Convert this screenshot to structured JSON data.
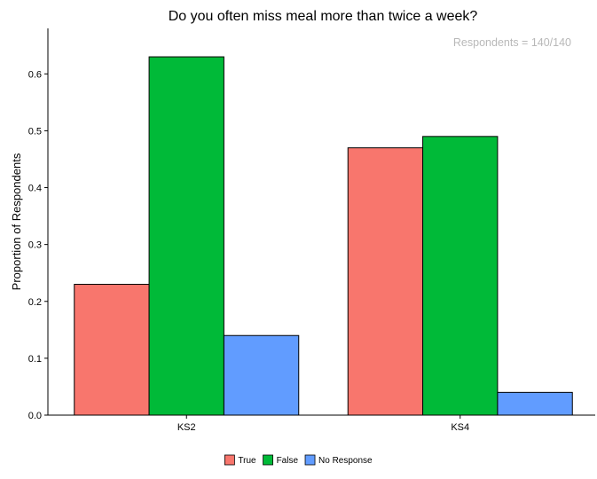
{
  "chart_data": {
    "type": "bar",
    "title": "Do you often miss meal more than twice a week?",
    "annotation": "Respondents = 140/140",
    "xlabel": "",
    "ylabel": "Proportion of Respondents",
    "ylim": [
      0,
      0.68
    ],
    "yticks": [
      0.0,
      0.1,
      0.2,
      0.3,
      0.4,
      0.5,
      0.6
    ],
    "ytick_labels": [
      "0.0",
      "0.1",
      "0.2",
      "0.3",
      "0.4",
      "0.5",
      "0.6"
    ],
    "categories": [
      "KS2",
      "KS4"
    ],
    "series": [
      {
        "name": "True",
        "color": "#F8766D",
        "values": [
          0.23,
          0.47
        ]
      },
      {
        "name": "False",
        "color": "#00BA38",
        "values": [
          0.63,
          0.49
        ]
      },
      {
        "name": "No Response",
        "color": "#619CFF",
        "values": [
          0.14,
          0.04
        ]
      }
    ],
    "grid": false,
    "legend": "bottom"
  }
}
